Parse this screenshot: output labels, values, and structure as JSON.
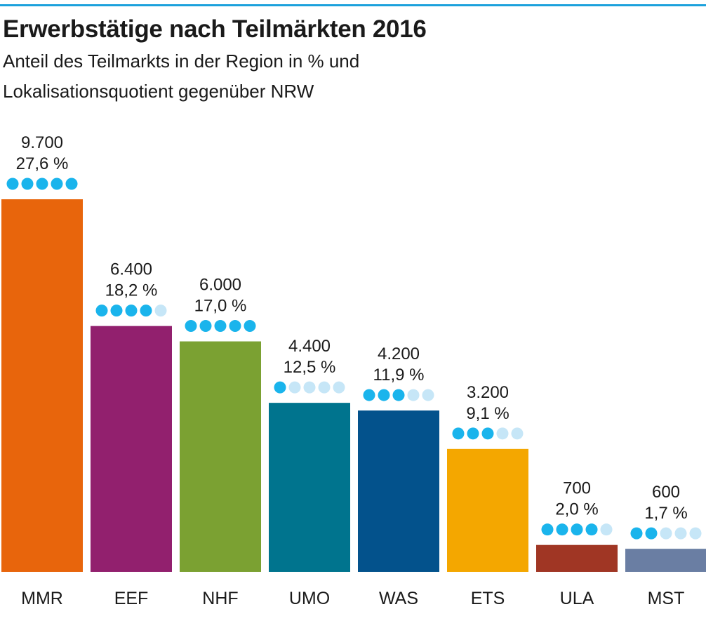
{
  "header": {
    "title": "Erwerbstätige nach Teilmärkten 2016",
    "subtitle_line1": "Anteil des Teilmarkts in der Region in % und",
    "subtitle_line2": "Lokalisationsquotient gegenüber NRW"
  },
  "colors": {
    "rule": "#1ba1dc",
    "dot_filled": "#1ab4ec",
    "dot_empty": "#c6e6f7"
  },
  "chart_data": {
    "type": "bar",
    "title": "Erwerbstätige nach Teilmärkten 2016",
    "subtitle": "Anteil des Teilmarkts in der Region in % und Lokalisationsquotient gegenüber NRW",
    "categories": [
      "MMR",
      "EEF",
      "NHF",
      "UMO",
      "WAS",
      "ETS",
      "ULA",
      "MST"
    ],
    "values": [
      9700,
      6400,
      6000,
      4400,
      4200,
      3200,
      700,
      600
    ],
    "value_labels": [
      "9.700",
      "6.400",
      "6.000",
      "4.400",
      "4.200",
      "3.200",
      "700",
      "600"
    ],
    "share_labels": [
      "27,6 %",
      "18,2 %",
      "17,0 %",
      "12,5 %",
      "11,9 %",
      "9,1 %",
      "2,0 %",
      "1,7 %"
    ],
    "dots_filled": [
      5,
      4,
      5,
      1,
      3,
      3,
      4,
      2
    ],
    "dots_total": 5,
    "bar_colors": [
      "#e8650c",
      "#92206e",
      "#7ba132",
      "#00748e",
      "#03528c",
      "#f4a700",
      "#a03624",
      "#6a7ea3"
    ],
    "ylim": [
      0,
      9700
    ],
    "grid": false,
    "xlabel": "",
    "ylabel": ""
  }
}
